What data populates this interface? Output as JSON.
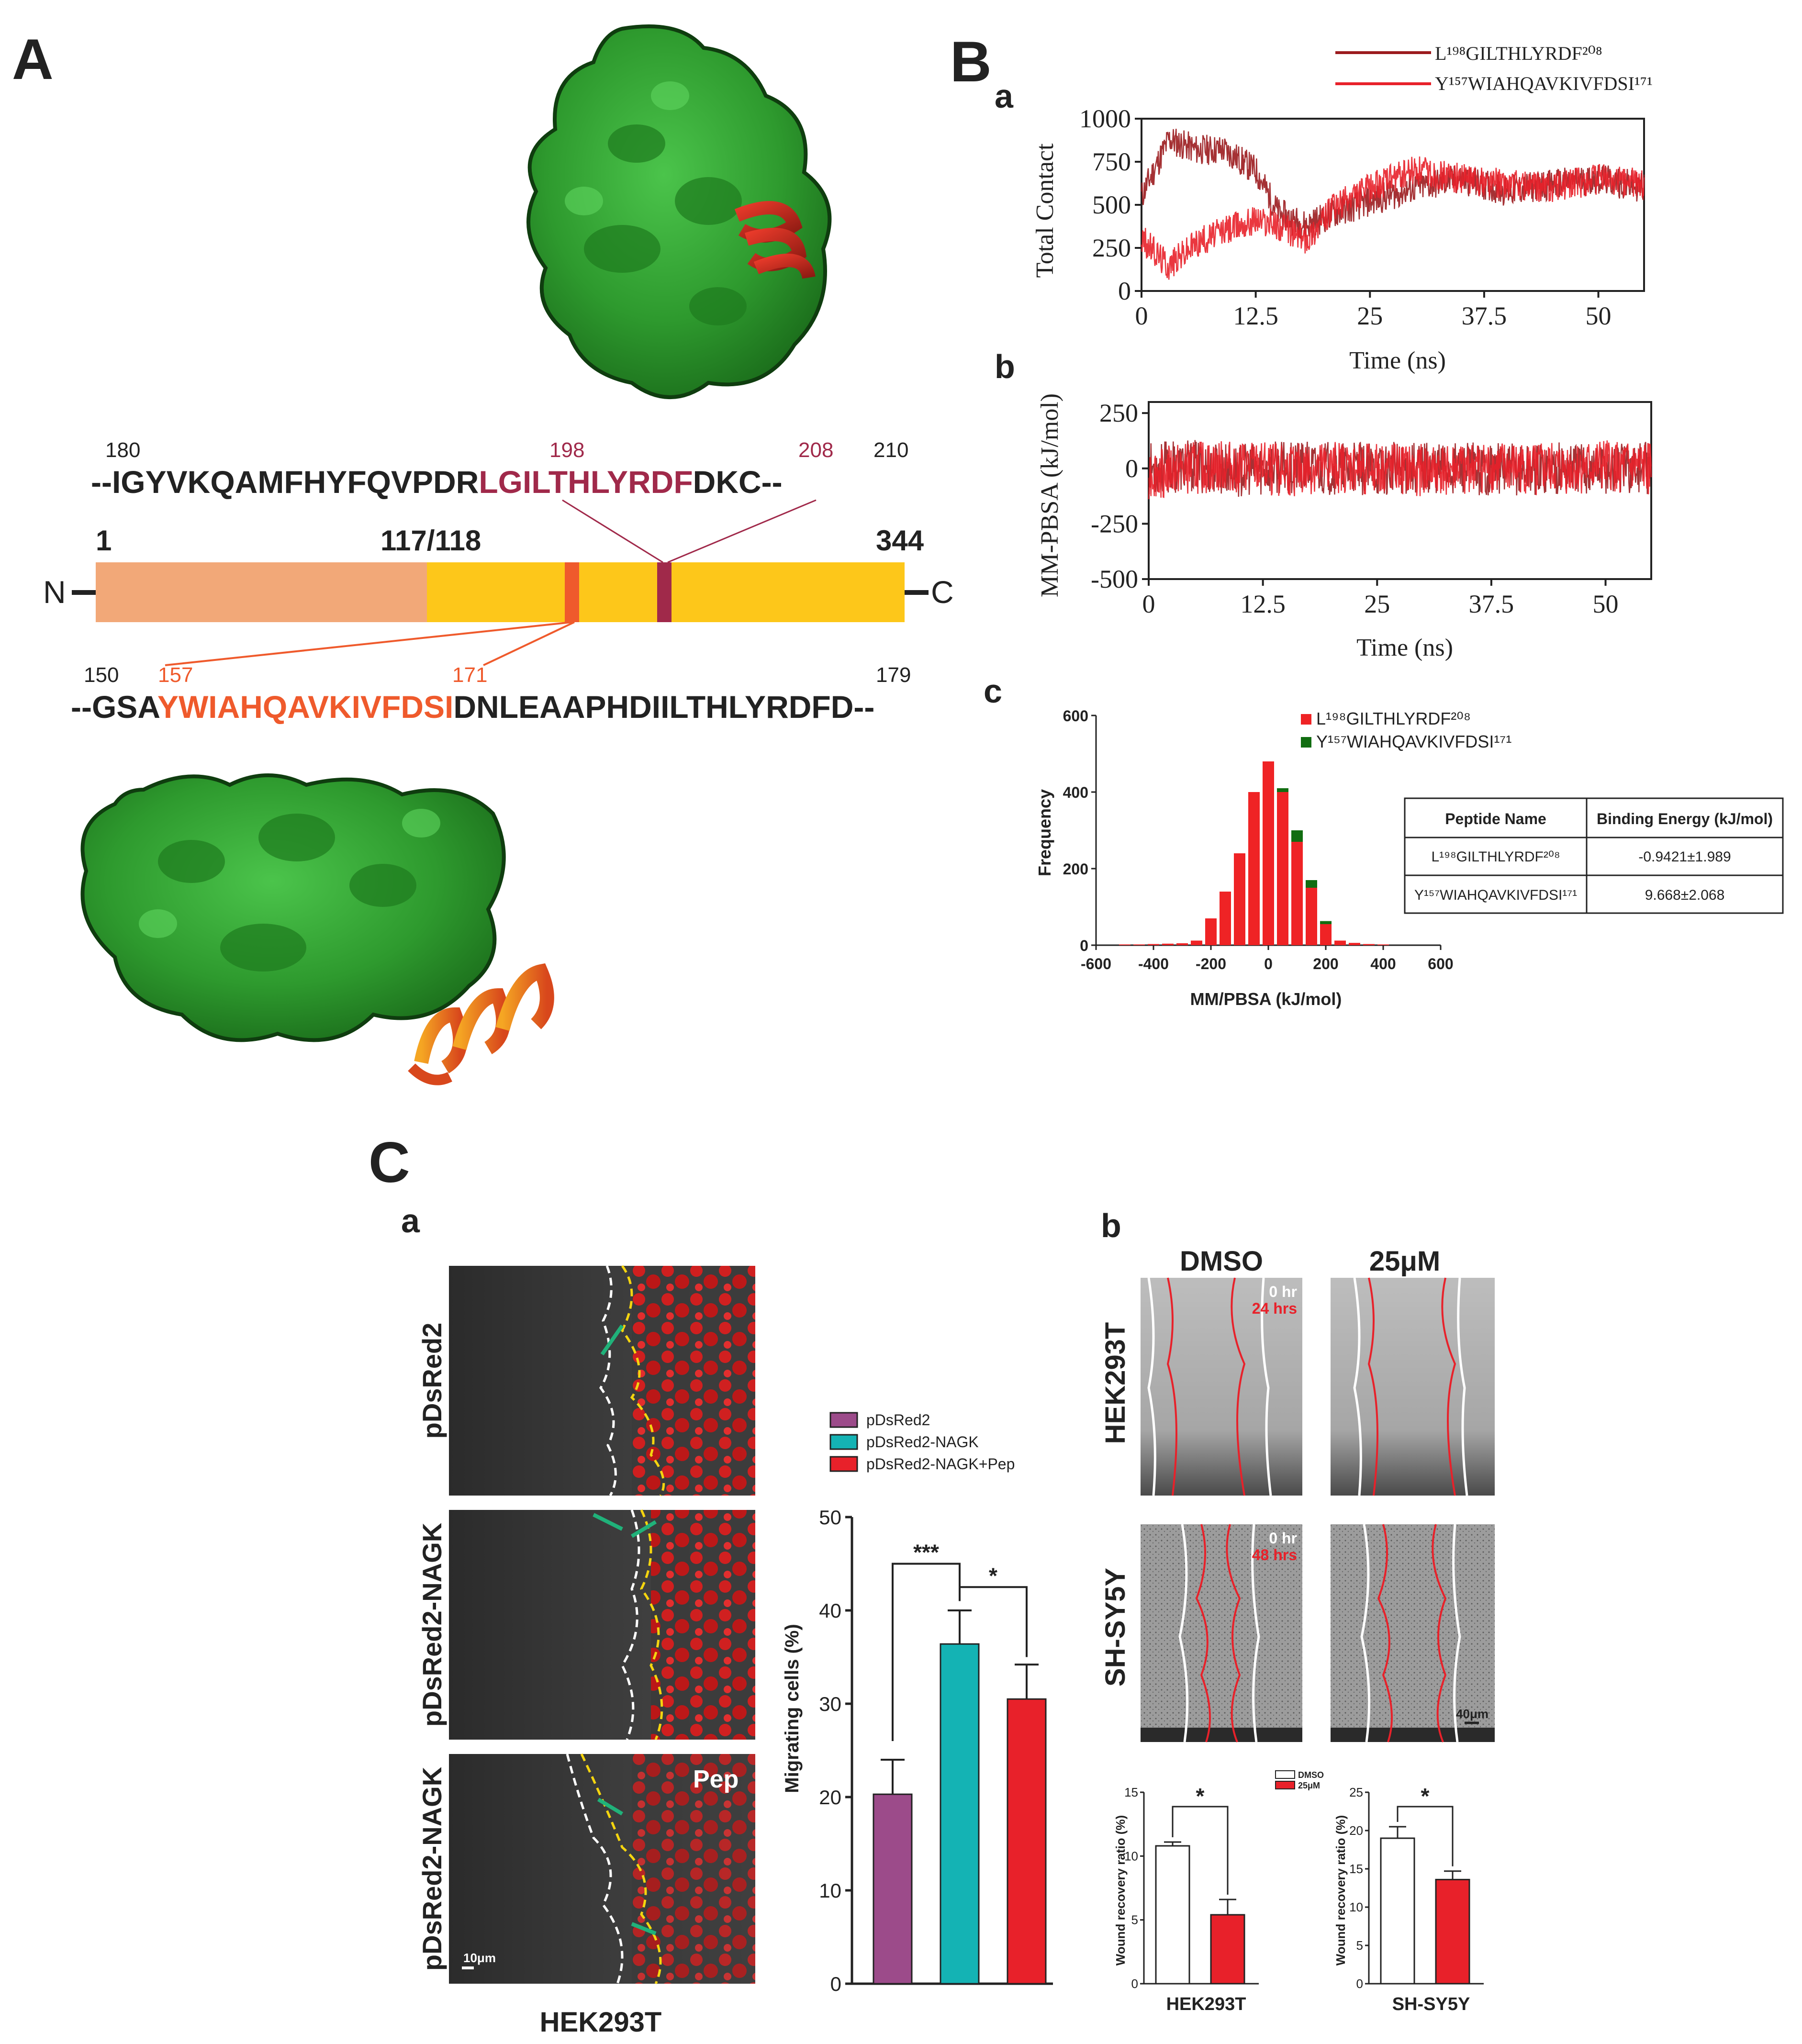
{
  "panelA": {
    "label": "A",
    "seqTop": {
      "numbers": [
        "180",
        "198",
        "208",
        "210"
      ],
      "prefix": "--IGYVKQAMFHYFQVPDR",
      "highlight": "LGILTHLYRDF",
      "suffix": "DKC--"
    },
    "domain": {
      "n_label": "N",
      "c_label": "C",
      "pos_start": "1",
      "pos_mid": "117/118",
      "pos_end": "344"
    },
    "seqBottom": {
      "numbers": [
        "150",
        "157",
        "171",
        "179"
      ],
      "prefix": "--GSA",
      "highlight": "YWIAHQAVKIVFDSI",
      "suffix": "DNLEAAPHDIILTHLYRDFD--"
    }
  },
  "panelB": {
    "label": "B",
    "legend": {
      "series1": "L¹⁹⁸GILTHLYRDF²⁰⁸",
      "series2": "Y¹⁵⁷WIAHQAVKIVFDSI¹⁷¹"
    },
    "a": {
      "label": "a",
      "ylabel": "Total Contact",
      "xlabel": "Time (ns)",
      "yticks": [
        "0",
        "250",
        "500",
        "750",
        "1000"
      ],
      "xticks": [
        "0",
        "12.5",
        "25",
        "37.5",
        "50"
      ]
    },
    "b": {
      "label": "b",
      "ylabel": "MM-PBSA (kJ/mol)",
      "xlabel": "Time (ns)",
      "yticks": [
        "-500",
        "-250",
        "0",
        "250"
      ],
      "xticks": [
        "0",
        "12.5",
        "25",
        "37.5",
        "50"
      ]
    },
    "c": {
      "label": "c",
      "ylabel": "Frequency",
      "xlabel": "MM/PBSA (kJ/mol)",
      "yticks": [
        "0",
        "200",
        "400",
        "600"
      ],
      "xticks": [
        "-600",
        "-400",
        "-200",
        "0",
        "200",
        "400",
        "600"
      ],
      "legend1": "L¹⁹⁸GILTHLYRDF²⁰⁸",
      "legend2": "Y¹⁵⁷WIAHQAVKIVFDSI¹⁷¹",
      "table": {
        "header": [
          "Peptide Name",
          "Binding Energy (kJ/mol)"
        ],
        "rows": [
          [
            "L¹⁹⁸GILTHLYRDF²⁰⁸",
            "-0.9421±1.989"
          ],
          [
            "Y¹⁵⁷WIAHQAVKIVFDSI¹⁷¹",
            "9.668±2.068"
          ]
        ]
      }
    }
  },
  "panelC": {
    "label": "C",
    "a": {
      "label": "a",
      "rows": [
        "pDsRed2",
        "pDsRed2-NAGK",
        "pDsRed2-NAGK"
      ],
      "pep_label": "Pep",
      "scale": "10μm",
      "cell_line": "HEK293T"
    },
    "b": {
      "label": "b",
      "col_dmso": "DMSO",
      "col_dose": "25μM",
      "row1": "HEK293T",
      "row2": "SH-SY5Y",
      "t0": "0 hr",
      "t24": "24 hrs",
      "t48": "48 hrs",
      "scale": "40μm",
      "legend_dmso": "DMSO",
      "legend_dose": "25μM",
      "ylabel": "Wound recovery ratio (%)",
      "sig": "*"
    }
  },
  "chart_data": [
    {
      "type": "line",
      "panel": "B-a",
      "xlabel": "Time (ns)",
      "ylabel": "Total Contact",
      "xlim": [
        0,
        55
      ],
      "ylim": [
        0,
        1000
      ],
      "x": [
        0,
        3,
        6,
        9,
        12.5,
        15,
        18,
        21,
        25,
        30,
        35,
        40,
        45,
        50,
        55
      ],
      "series": [
        {
          "name": "L¹⁹⁸GILTHLYRDF²⁰⁸",
          "color": "#9b1b1e",
          "values": [
            550,
            880,
            820,
            820,
            700,
            450,
            380,
            450,
            520,
            600,
            650,
            580,
            620,
            650,
            600
          ]
        },
        {
          "name": "Y¹⁵⁷WIAHQAVKIVFDSI¹⁷¹",
          "color": "#e8212a",
          "values": [
            300,
            150,
            280,
            350,
            420,
            380,
            300,
            480,
            600,
            700,
            650,
            620,
            600,
            650,
            620
          ]
        }
      ]
    },
    {
      "type": "line",
      "panel": "B-b",
      "xlabel": "Time (ns)",
      "ylabel": "MM-PBSA (kJ/mol)",
      "xlim": [
        0,
        55
      ],
      "ylim": [
        -500,
        300
      ],
      "x": [
        0,
        5,
        10,
        15,
        20,
        25,
        30,
        35,
        40,
        45,
        50,
        55
      ],
      "series": [
        {
          "name": "L¹⁹⁸GILTHLYRDF²⁰⁸",
          "color": "#9b1b1e",
          "values": [
            0,
            10,
            -10,
            5,
            0,
            -5,
            10,
            0,
            -5,
            5,
            0,
            0
          ]
        },
        {
          "name": "Y¹⁵⁷WIAHQAVKIVFDSI¹⁷¹",
          "color": "#e8212a",
          "values": [
            -20,
            0,
            10,
            -10,
            5,
            0,
            -10,
            5,
            0,
            -5,
            10,
            0
          ]
        }
      ]
    },
    {
      "type": "bar",
      "panel": "B-c",
      "xlabel": "MM/PBSA (kJ/mol)",
      "ylabel": "Frequency",
      "xlim": [
        -600,
        600
      ],
      "ylim": [
        0,
        600
      ],
      "categories": [
        -500,
        -450,
        -400,
        -350,
        -300,
        -250,
        -200,
        -150,
        -100,
        -50,
        0,
        50,
        100,
        150,
        200,
        250,
        300,
        350,
        400
      ],
      "series": [
        {
          "name": "L¹⁹⁸GILTHLYRDF²⁰⁸",
          "color": "#ef2325",
          "values": [
            2,
            2,
            3,
            4,
            5,
            12,
            70,
            140,
            240,
            400,
            480,
            400,
            270,
            150,
            55,
            12,
            6,
            3,
            2
          ]
        },
        {
          "name": "Y¹⁵⁷WIAHQAVKIVFDSI¹⁷¹",
          "color": "#116d11",
          "values": [
            0,
            0,
            0,
            0,
            0,
            0,
            0,
            0,
            0,
            0,
            0,
            10,
            30,
            20,
            8,
            0,
            0,
            0,
            0
          ]
        }
      ]
    },
    {
      "type": "bar",
      "panel": "C-a",
      "ylabel": "Migrating cells (%)",
      "ylim": [
        0,
        50
      ],
      "categories": [
        "pDsRed2",
        "pDsRed2-NAGK",
        "pDsRed2-NAGK+Pep"
      ],
      "values": [
        20.3,
        36.4,
        30.5
      ],
      "errors": [
        3.7,
        3.6,
        3.7
      ],
      "colors": [
        "#9c4b8a",
        "#14b3b4",
        "#e8212a"
      ],
      "significance": [
        "***",
        "*"
      ]
    },
    {
      "type": "bar",
      "panel": "C-b HEK293T",
      "ylabel": "Wound recovery ratio (%)",
      "ylim": [
        0,
        15
      ],
      "categories": [
        "DMSO",
        "25μM"
      ],
      "values": [
        10.8,
        5.4
      ],
      "errors": [
        0.3,
        1.2
      ],
      "xlabel": "HEK293T"
    },
    {
      "type": "bar",
      "panel": "C-b SH-SY5Y",
      "ylabel": "Wound recovery ratio (%)",
      "ylim": [
        0,
        25
      ],
      "categories": [
        "DMSO",
        "25μM"
      ],
      "values": [
        19.0,
        13.6
      ],
      "errors": [
        1.5,
        1.1
      ],
      "xlabel": "SH-SY5Y"
    }
  ]
}
